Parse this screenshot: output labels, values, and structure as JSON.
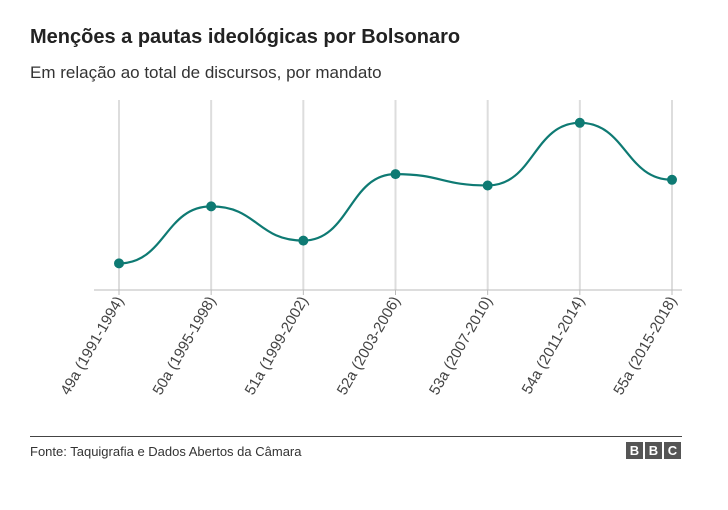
{
  "title": "Menções a pautas ideológicas por Bolsonaro",
  "subtitle": "Em relação ao total de discursos, por mandato",
  "source": "Fonte: Taquigrafia e Dados Abertos da Câmara",
  "logo": [
    "B",
    "B",
    "C"
  ],
  "colors": {
    "line": "#0e7a73",
    "grid": "#dddddd",
    "axis": "#bbbbbb"
  },
  "chart_data": {
    "type": "line",
    "categories": [
      "49a (1991-1994)",
      "50a (1995-1998)",
      "51a (1999-2002)",
      "52a (2003-2006)",
      "53a (2007-2010)",
      "54a (2011-2014)",
      "55a (2015-2018)"
    ],
    "values": [
      14,
      44,
      26,
      61,
      55,
      88,
      58
    ],
    "ylim": [
      0,
      100
    ],
    "ylabel": "",
    "xlabel": "",
    "grid": true,
    "smooth": true
  }
}
